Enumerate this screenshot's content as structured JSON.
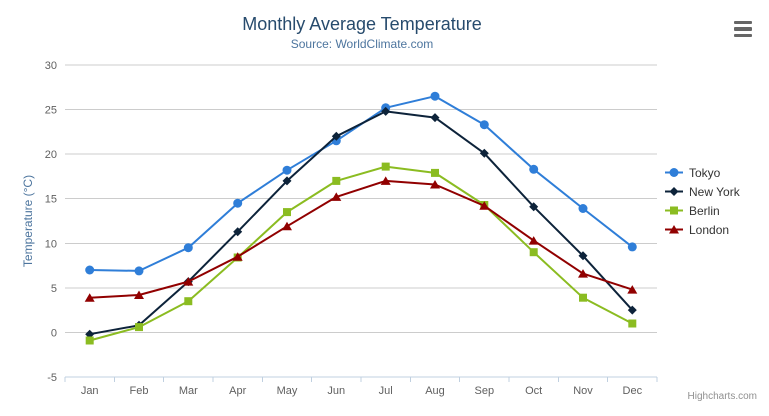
{
  "chart_data": {
    "type": "line",
    "title": "Monthly Average Temperature",
    "subtitle": "Source: WorldClimate.com",
    "categories": [
      "Jan",
      "Feb",
      "Mar",
      "Apr",
      "May",
      "Jun",
      "Jul",
      "Aug",
      "Sep",
      "Oct",
      "Nov",
      "Dec"
    ],
    "series": [
      {
        "name": "Tokyo",
        "color": "#2f7ed8",
        "marker": "circle",
        "values": [
          7.0,
          6.9,
          9.5,
          14.5,
          18.2,
          21.5,
          25.2,
          26.5,
          23.3,
          18.3,
          13.9,
          9.6
        ]
      },
      {
        "name": "New York",
        "color": "#0d233a",
        "marker": "diamond",
        "values": [
          -0.2,
          0.8,
          5.7,
          11.3,
          17.0,
          22.0,
          24.8,
          24.1,
          20.1,
          14.1,
          8.6,
          2.5
        ]
      },
      {
        "name": "Berlin",
        "color": "#8bbc21",
        "marker": "square",
        "values": [
          -0.9,
          0.6,
          3.5,
          8.4,
          13.5,
          17.0,
          18.6,
          17.9,
          14.3,
          9.0,
          3.9,
          1.0
        ]
      },
      {
        "name": "London",
        "color": "#910000",
        "marker": "triangle",
        "values": [
          3.9,
          4.2,
          5.7,
          8.5,
          11.9,
          15.2,
          17.0,
          16.6,
          14.2,
          10.3,
          6.6,
          4.8
        ]
      }
    ],
    "xlabel": "",
    "ylabel": "Temperature (°C)",
    "yaxis": {
      "min": -5,
      "max": 30,
      "tick_interval": 5,
      "tick_labels": [
        "-5",
        "0",
        "5",
        "10",
        "15",
        "20",
        "25",
        "30"
      ]
    },
    "grid": true,
    "legend_position": "right"
  },
  "credits": {
    "label": "Highcharts.com"
  },
  "icons": {
    "export_menu": "hamburger-icon"
  },
  "colors": {
    "title": "#274b6d",
    "subtitle": "#4d759e",
    "axis_title": "#4d759e",
    "axis_labels": "#606060",
    "grid_line": "#cccccc",
    "axis_line": "#c0d0e0",
    "legend_text": "#333333",
    "credits": "#909090",
    "menu_icon": "#666666"
  }
}
